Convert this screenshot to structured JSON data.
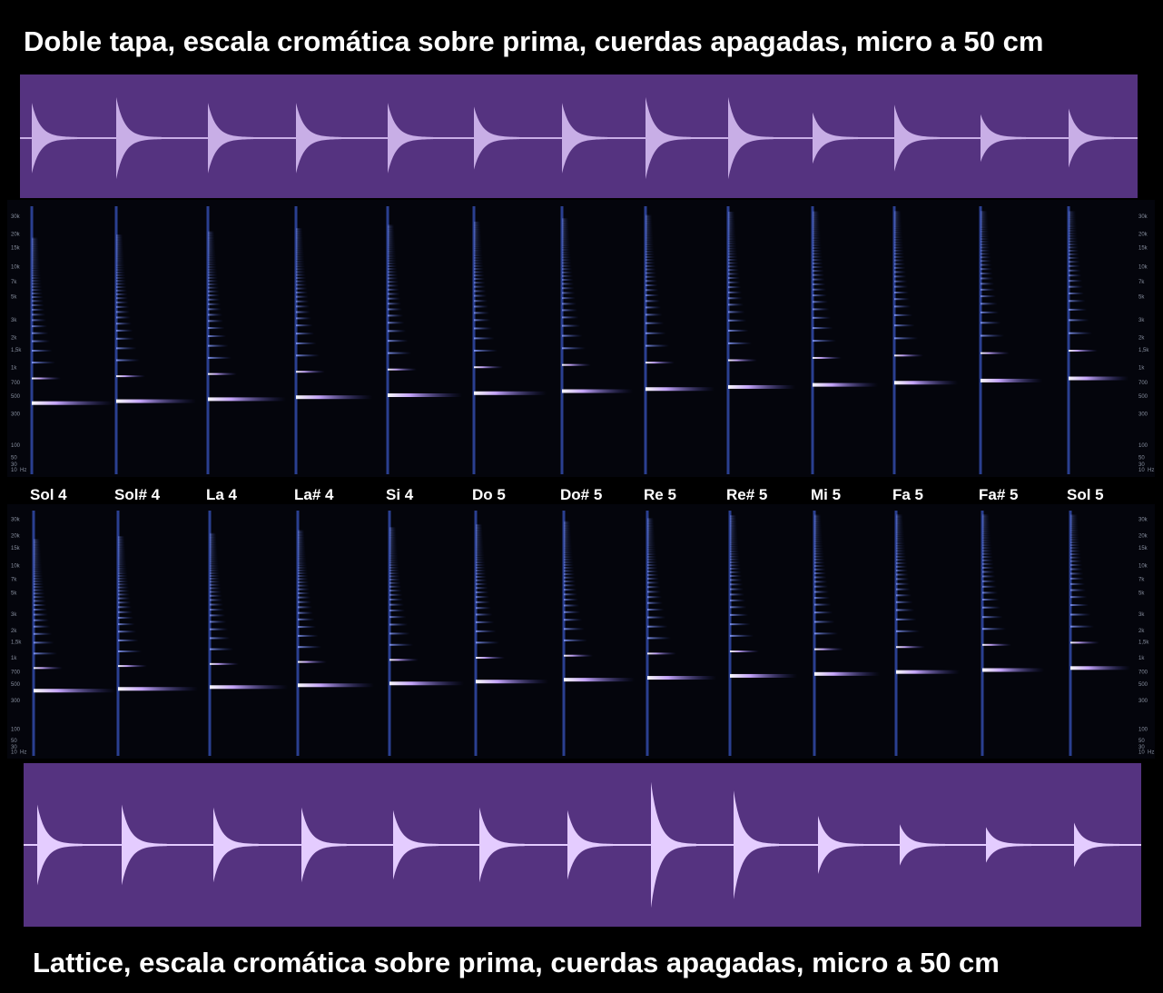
{
  "top_title": "Doble tapa, escala cromática sobre prima, cuerdas apagadas, micro a 50 cm",
  "bottom_title": "Lattice, escala cromática sobre prima, cuerdas apagadas, micro a 50 cm",
  "notes": [
    "Sol 4",
    "Sol# 4",
    "La 4",
    "La# 4",
    "Si 4",
    "Do 5",
    "Do# 5",
    "Re 5",
    "Re# 5",
    "Mi 5",
    "Fa 5",
    "Fa# 5",
    "Sol 5"
  ],
  "freq_axis": {
    "unit": "Hz",
    "labels": [
      "30k",
      "20k",
      "15k",
      "10k",
      "7k",
      "5k",
      "3k",
      "2k",
      "1,5k",
      "1k",
      "700",
      "500",
      "300",
      "100",
      "50",
      "30",
      "10"
    ]
  }
}
